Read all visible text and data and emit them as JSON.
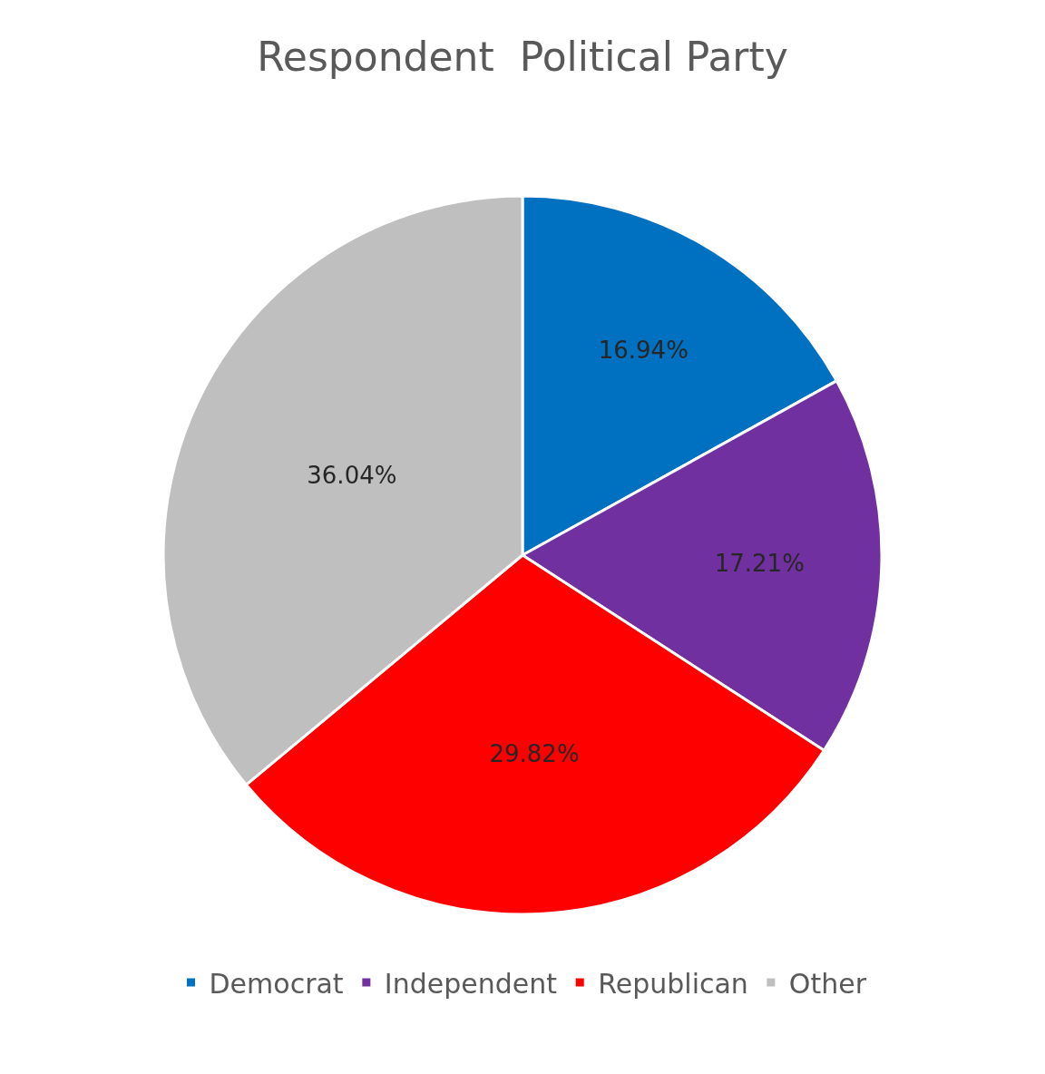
{
  "chart_data": {
    "type": "pie",
    "title": "Respondent  Political Party",
    "categories": [
      "Democrat",
      "Independent",
      "Republican",
      "Other"
    ],
    "values": [
      16.94,
      17.21,
      29.82,
      36.04
    ],
    "value_labels": [
      "16.94%",
      "17.21%",
      "29.82%",
      "36.04%"
    ],
    "colors": [
      "#0070c0",
      "#7030a0",
      "#ff0000",
      "#bfbfbf"
    ],
    "legend": "bottom"
  }
}
